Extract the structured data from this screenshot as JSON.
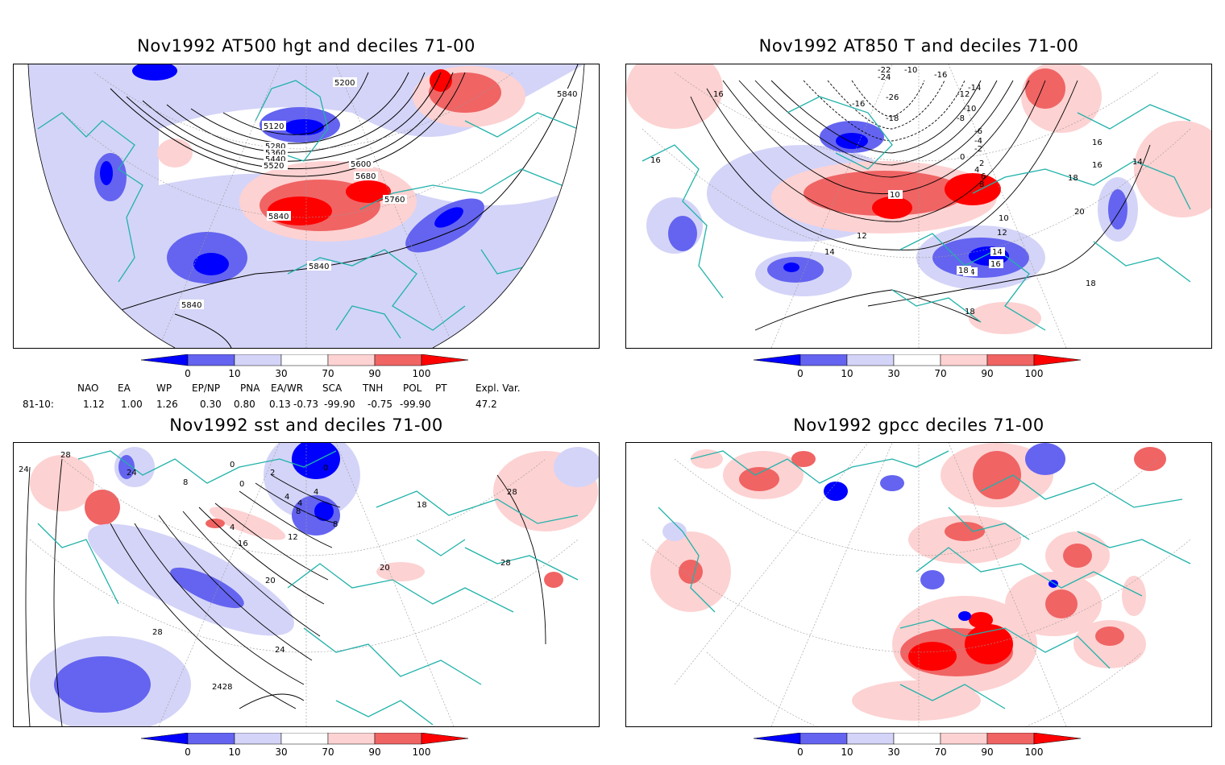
{
  "panels": [
    {
      "title": "Nov1992 AT500 hgt and deciles 71-00",
      "contour_labels": [
        "5200",
        "5120",
        "5280",
        "5360",
        "5440",
        "5520",
        "5600",
        "5680",
        "5760",
        "5840",
        "5840",
        "5840",
        "5840"
      ]
    },
    {
      "title": "Nov1992 AT850 T and deciles 71-00",
      "contour_labels": [
        "16",
        "16",
        "-22",
        "-24",
        "-10",
        "-16",
        "-14",
        "-12",
        "-26",
        "-16",
        "-18",
        "-10",
        "-8",
        "-6",
        "-4",
        "-2",
        "0",
        "2",
        "4",
        "6",
        "8",
        "10",
        "10",
        "12",
        "14",
        "16",
        "14",
        "18",
        "20",
        "16",
        "14",
        "12",
        "14",
        "16",
        "18",
        "18",
        "18"
      ]
    },
    {
      "title": "Nov1992 sst and deciles 71-00",
      "contour_labels": [
        "24",
        "28",
        "24",
        "8",
        "0",
        "0",
        "2",
        "4",
        "4",
        "0",
        "4",
        "8",
        "8",
        "12",
        "16",
        "4",
        "20",
        "18",
        "28",
        "28",
        "20",
        "28",
        "24",
        "2428"
      ]
    },
    {
      "title": "Nov1992 gpcc deciles 71-00",
      "contour_labels": []
    }
  ],
  "legend": {
    "ticks": [
      "0",
      "10",
      "30",
      "70",
      "90",
      "100"
    ],
    "colors": [
      "#0000ff",
      "#6464f0",
      "#d4d4f8",
      "#ffffff",
      "#fdd2d2",
      "#f06464",
      "#ff0000"
    ]
  },
  "indices": {
    "row_label": "81-10:",
    "headers": [
      "NAO",
      "EA",
      "WP",
      "EP/NP",
      "PNA",
      "EA/WR",
      "SCA",
      "TNH",
      "POL",
      "PT",
      "Expl. Var."
    ],
    "values": [
      "1.12",
      "1.00",
      "1.26",
      "0.30",
      "0.80",
      "0.13",
      "-0.73",
      "-99.90",
      "-0.75",
      "-99.90",
      "47.2"
    ]
  },
  "colors": {
    "coastline": "#20b2aa",
    "contour": "#000000",
    "grid": "#999999"
  }
}
